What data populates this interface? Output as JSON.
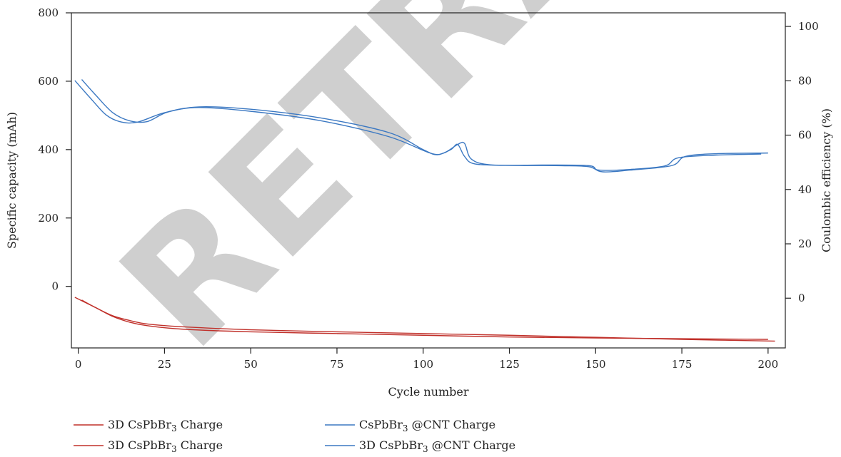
{
  "watermark": "RETRACTED",
  "chart_data": {
    "type": "line",
    "xlabel": "Cycle number",
    "ylabel": "Specific capacity (mAh)",
    "y2label": "Coulombic efficiency (%)",
    "xlim": [
      -2,
      205
    ],
    "ylim": [
      -180,
      800
    ],
    "y2lim": [
      -18.3,
      105
    ],
    "x_ticks": [
      0,
      25,
      50,
      75,
      100,
      125,
      150,
      175,
      200
    ],
    "y_ticks": [
      0,
      200,
      400,
      600,
      800
    ],
    "y2_ticks": [
      0,
      20,
      40,
      60,
      80,
      100
    ],
    "grid": false,
    "legend_position": "bottom",
    "series": [
      {
        "name": "3D CsPbBr3 Charge",
        "color": "#c0302a",
        "x": [
          -1,
          5,
          10,
          15,
          20,
          30,
          50,
          75,
          100,
          125,
          150,
          175,
          200
        ],
        "values": [
          -32,
          -62,
          -88,
          -105,
          -115,
          -125,
          -133,
          -138,
          -143,
          -148,
          -151,
          -153,
          -155
        ]
      },
      {
        "name": "3D CsPbBr3 Charge",
        "color": "#c0302a",
        "x": [
          1,
          5,
          10,
          15,
          20,
          30,
          50,
          75,
          100,
          125,
          150,
          175,
          202
        ],
        "values": [
          -40,
          -62,
          -86,
          -100,
          -110,
          -118,
          -127,
          -133,
          -138,
          -143,
          -149,
          -155,
          -160
        ]
      },
      {
        "name": "CsPbBr3 @CNT Charge",
        "color": "#3b78c2",
        "x": [
          -1,
          4,
          8,
          12,
          17,
          25,
          35,
          50,
          70,
          90,
          100,
          104,
          108,
          110,
          112,
          115,
          125,
          140,
          148,
          152,
          160,
          172,
          176,
          185,
          200
        ],
        "values": [
          602,
          545,
          502,
          482,
          480,
          508,
          525,
          518,
          493,
          450,
          400,
          385,
          400,
          415,
          380,
          358,
          354,
          353,
          350,
          335,
          340,
          353,
          380,
          388,
          390
        ]
      },
      {
        "name": "3D CsPbBr3 @CNT Charge",
        "color": "#3b78c2",
        "x": [
          1,
          5,
          10,
          15,
          20,
          26,
          35,
          50,
          70,
          90,
          102,
          106,
          110,
          112,
          114,
          120,
          135,
          148,
          151,
          160,
          170,
          174,
          185,
          198
        ],
        "values": [
          605,
          560,
          508,
          484,
          482,
          510,
          523,
          512,
          485,
          438,
          390,
          390,
          415,
          418,
          372,
          355,
          355,
          353,
          340,
          342,
          352,
          376,
          384,
          387
        ]
      }
    ]
  }
}
